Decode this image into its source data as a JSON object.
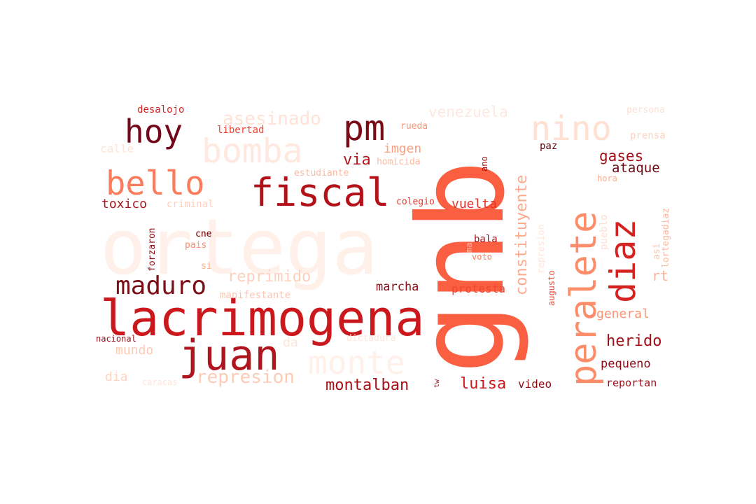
{
  "cloud": {
    "words": [
      {
        "id": "gnb",
        "text": "gnb",
        "color": "#fa5f42"
      },
      {
        "id": "ortega",
        "text": "ortega",
        "color": "#fff0e9"
      },
      {
        "id": "lacrimogena",
        "text": "lacrimogena",
        "color": "#cb181d"
      },
      {
        "id": "juan",
        "text": "juan",
        "color": "#b0151e"
      },
      {
        "id": "fiscal",
        "text": "fiscal",
        "color": "#b21218"
      },
      {
        "id": "peralete",
        "text": "peralete",
        "color": "#fc8d6b"
      },
      {
        "id": "diaz",
        "text": "diaz",
        "color": "#d52221"
      },
      {
        "id": "bomba",
        "text": "bomba",
        "color": "#ffe8df"
      },
      {
        "id": "pm",
        "text": "pm",
        "color": "#7a0c15"
      },
      {
        "id": "hoy",
        "text": "hoy",
        "color": "#73081a"
      },
      {
        "id": "nino",
        "text": "nino",
        "color": "#ffe0d2"
      },
      {
        "id": "bello",
        "text": "bello",
        "color": "#fb7c5c"
      },
      {
        "id": "maduro",
        "text": "maduro",
        "color": "#7a0f18"
      },
      {
        "id": "monte",
        "text": "monte",
        "color": "#fff0e9"
      },
      {
        "id": "constituyente",
        "text": "constituyente",
        "color": "#fcab8f"
      },
      {
        "id": "asesinado",
        "text": "asesinado",
        "color": "#ffe3d6"
      },
      {
        "id": "represion",
        "text": "represion",
        "color": "#fdcbb6"
      },
      {
        "id": "reprimido",
        "text": "reprimido",
        "color": "#fdd0bd"
      },
      {
        "id": "venezuela",
        "text": "venezuela",
        "color": "#ffe8df"
      },
      {
        "id": "montalban",
        "text": "montalban",
        "color": "#a50f15"
      },
      {
        "id": "luisa",
        "text": "luisa",
        "color": "#cb181d"
      },
      {
        "id": "herido",
        "text": "herido",
        "color": "#9f0f18"
      },
      {
        "id": "gases",
        "text": "gases",
        "color": "#a30f15"
      },
      {
        "id": "ataque",
        "text": "ataque",
        "color": "#6b0a14"
      },
      {
        "id": "via",
        "text": "via",
        "color": "#b5161d"
      },
      {
        "id": "imgen",
        "text": "imgen",
        "color": "#fc9f82"
      },
      {
        "id": "toxico",
        "text": "toxico",
        "color": "#b0151e"
      },
      {
        "id": "vuelta",
        "text": "vuelta",
        "color": "#e53228"
      },
      {
        "id": "marcha",
        "text": "marcha",
        "color": "#8a0c16"
      },
      {
        "id": "protesta",
        "text": "protesta",
        "color": "#f14432"
      },
      {
        "id": "general",
        "text": "general",
        "color": "#fc9474"
      },
      {
        "id": "pequeno",
        "text": "pequeno",
        "color": "#8c0d15"
      },
      {
        "id": "reportan",
        "text": "reportan",
        "color": "#9f0f18"
      },
      {
        "id": "video",
        "text": "video",
        "color": "#8c0d15"
      },
      {
        "id": "rt",
        "text": "rt",
        "color": "#fcb59c"
      },
      {
        "id": "mundo",
        "text": "mundo",
        "color": "#fdcab5"
      },
      {
        "id": "dia",
        "text": "dia",
        "color": "#fdd4c2"
      },
      {
        "id": "calle",
        "text": "calle",
        "color": "#ffe3d6"
      },
      {
        "id": "desalojo",
        "text": "desalojo",
        "color": "#d72422"
      },
      {
        "id": "libertad",
        "text": "libertad",
        "color": "#f14432"
      },
      {
        "id": "estudiante",
        "text": "estudiante",
        "color": "#fcbba1"
      },
      {
        "id": "homicida",
        "text": "homicida",
        "color": "#fcbba1"
      },
      {
        "id": "rueda",
        "text": "rueda",
        "color": "#fc9474"
      },
      {
        "id": "paz",
        "text": "paz",
        "color": "#67000d"
      },
      {
        "id": "ano",
        "text": "ano",
        "color": "#a50f15"
      },
      {
        "id": "persona",
        "text": "persona",
        "color": "#fee0d2"
      },
      {
        "id": "prensa",
        "text": "prensa",
        "color": "#fdd4c2"
      },
      {
        "id": "hora",
        "text": "hora",
        "color": "#fcab8f"
      },
      {
        "id": "colegio",
        "text": "colegio",
        "color": "#e53228"
      },
      {
        "id": "criminal",
        "text": "criminal",
        "color": "#fdd0bd"
      },
      {
        "id": "cne",
        "text": "cne",
        "color": "#67000d"
      },
      {
        "id": "pais",
        "text": "pais",
        "color": "#fc8d6b"
      },
      {
        "id": "si",
        "text": "si",
        "color": "#fcab8f"
      },
      {
        "id": "manifestante",
        "text": "manifestante",
        "color": "#fdc5ae"
      },
      {
        "id": "nacional",
        "text": "nacional",
        "color": "#8c0d15"
      },
      {
        "id": "da",
        "text": "da",
        "color": "#fee5d9"
      },
      {
        "id": "dictadura",
        "text": "dictadura",
        "color": "#fee5d9"
      },
      {
        "id": "caracas",
        "text": "caracas",
        "color": "#fee5d9"
      },
      {
        "id": "forzaron",
        "text": "forzaron",
        "color": "#8c0d15"
      },
      {
        "id": "bala",
        "text": "bala",
        "color": "#a50f15"
      },
      {
        "id": "voto",
        "text": "voto",
        "color": "#fb7c5c"
      },
      {
        "id": "ma",
        "text": "ma",
        "color": "#fcbba1"
      },
      {
        "id": "augusto",
        "text": "augusto",
        "color": "#f14432"
      },
      {
        "id": "represion2",
        "text": "represion",
        "color": "#fee5d9"
      },
      {
        "id": "pueblo",
        "text": "pueblo",
        "color": "#fee0d2"
      },
      {
        "id": "asi",
        "text": "asi",
        "color": "#fcc3ab"
      },
      {
        "id": "lortegadiaz",
        "text": "lortegadiaz",
        "color": "#fcbba1"
      },
      {
        "id": "tw",
        "text": "tw",
        "color": "#8c0d15"
      }
    ]
  }
}
